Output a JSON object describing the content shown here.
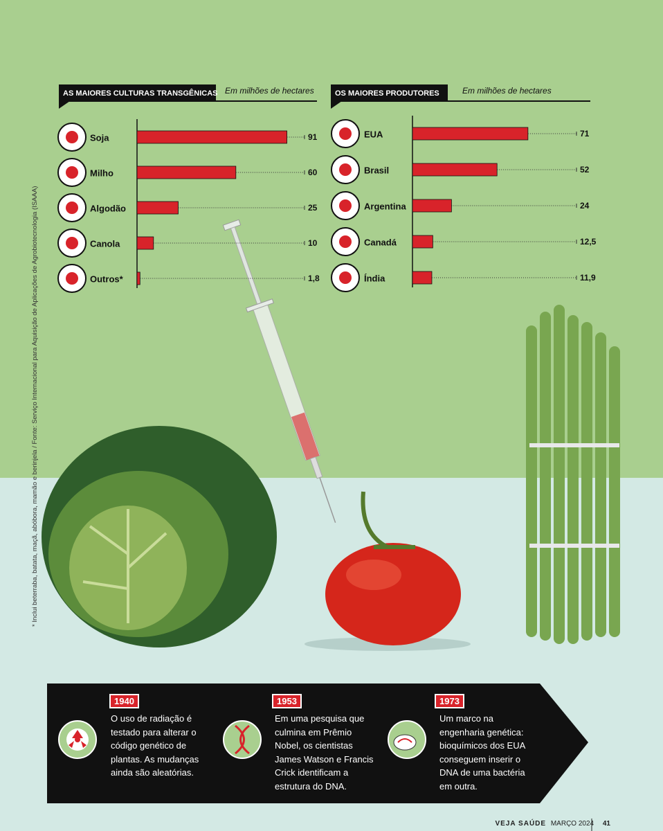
{
  "chart_data": [
    {
      "type": "bar",
      "title": "AS MAIORES CULTURAS TRANSGÊNICAS",
      "subtitle": "Em milhões de hectares",
      "categories": [
        "Soja",
        "Milho",
        "Algodão",
        "Canola",
        "Outros*"
      ],
      "values": [
        91,
        60,
        25,
        10,
        1.8
      ],
      "value_labels": [
        "91",
        "60",
        "25",
        "10",
        "1,8"
      ],
      "color": "#d8232a"
    },
    {
      "type": "bar",
      "title": "OS MAIORES PRODUTORES",
      "subtitle": "Em milhões de hectares",
      "categories": [
        "EUA",
        "Brasil",
        "Argentina",
        "Canadá",
        "Índia"
      ],
      "values": [
        71,
        52,
        24,
        12.5,
        11.9
      ],
      "value_labels": [
        "71",
        "52",
        "24",
        "12,5",
        "11,9"
      ],
      "color": "#d8232a"
    }
  ],
  "footnote": "* Inclui beterraba, batata, maçã, abóbora, mamão e berinjela / Fonte: Serviço Internacional para Aquisição de Aplicações de Agrobiotecnologia (ISAAA)",
  "timeline": [
    {
      "year": "1940",
      "text": "O uso de radiação é testado para alterar o código genético de plantas. As mudanças ainda são aleatórias."
    },
    {
      "year": "1953",
      "text": "Em uma pesquisa que culmina em Prêmio Nobel, os cientistas James Watson e Francis Crick identificam a estrutura do DNA."
    },
    {
      "year": "1973",
      "text": "Um marco na engenharia genética: bioquímicos dos EUA conseguem inserir o DNA de uma bactéria em outra."
    }
  ],
  "footer": {
    "magazine": "VEJA SAÚDE",
    "date": "MARÇO 2024",
    "page": "41"
  }
}
